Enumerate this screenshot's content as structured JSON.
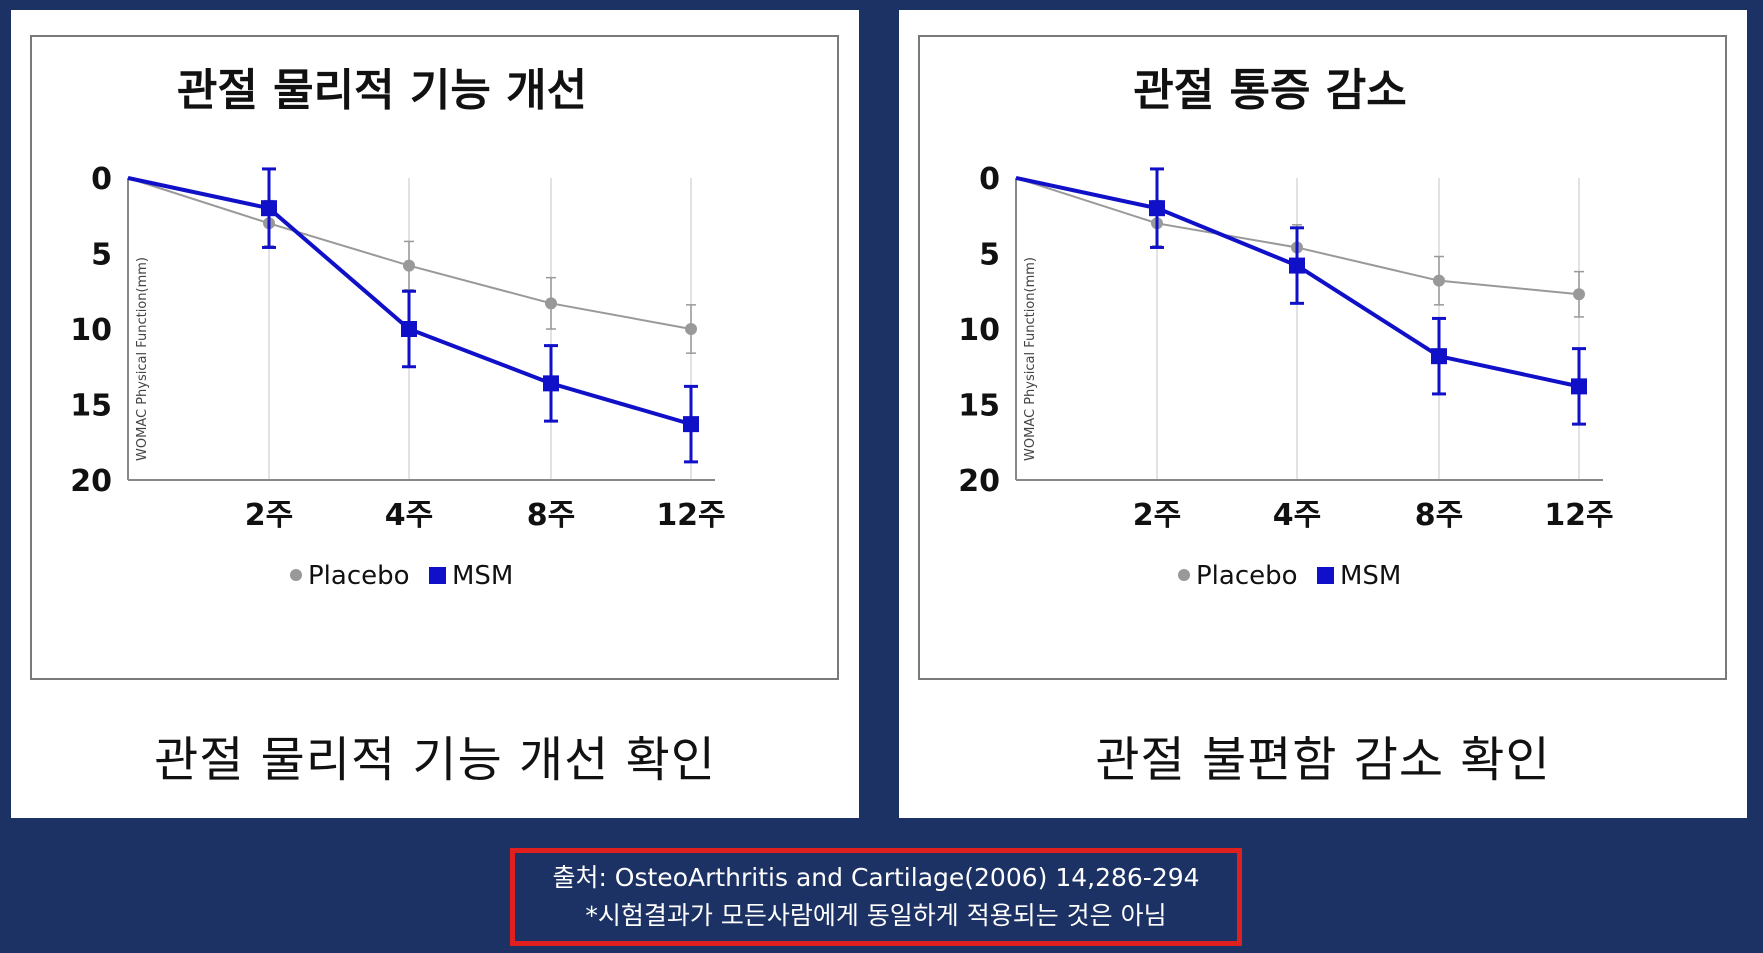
{
  "source": {
    "line1": "출처: OsteoArthritis and Cartilage(2006) 14,286-294",
    "line2": "*시험결과가 모든사람에게 동일하게 적용되는 것은 아님"
  },
  "colors": {
    "placebo": "#999999",
    "msm": "#1010c8",
    "background": "#1c3164",
    "source_border": "#e01f1f"
  },
  "chart_data": [
    {
      "type": "line",
      "title": "관절 물리적 기능 개선",
      "caption": "관절 물리적 기능 개선 확인",
      "ylabel": "WOMAC Physical Function(mm)",
      "ylim": [
        0,
        20
      ],
      "y_inverted": true,
      "yticks": [
        "0",
        "5",
        "10",
        "15",
        "20"
      ],
      "categories": [
        "",
        "2주",
        "4주",
        "8주",
        "12주"
      ],
      "series": [
        {
          "name": "Placebo",
          "marker": "circle",
          "values": [
            0,
            3,
            5.8,
            8.3,
            10
          ],
          "errors": [
            0,
            1.5,
            1.6,
            1.7,
            1.6
          ]
        },
        {
          "name": "MSM",
          "marker": "square",
          "values": [
            0,
            2,
            10,
            13.6,
            16.3
          ],
          "errors": [
            0,
            2.6,
            2.5,
            2.5,
            2.5
          ]
        }
      ]
    },
    {
      "type": "line",
      "title": "관절 통증 감소",
      "caption": "관절 불편함 감소 확인",
      "ylabel": "WOMAC Physical Function(mm)",
      "ylim": [
        0,
        20
      ],
      "y_inverted": true,
      "yticks": [
        "0",
        "5",
        "10",
        "15",
        "20"
      ],
      "categories": [
        "",
        "2주",
        "4주",
        "8주",
        "12주"
      ],
      "series": [
        {
          "name": "Placebo",
          "marker": "circle",
          "values": [
            0,
            3,
            4.6,
            6.8,
            7.7
          ],
          "errors": [
            0,
            1.5,
            1.5,
            1.6,
            1.5
          ]
        },
        {
          "name": "MSM",
          "marker": "square",
          "values": [
            0,
            2,
            5.8,
            11.8,
            13.8
          ],
          "errors": [
            0,
            2.6,
            2.5,
            2.5,
            2.5
          ]
        }
      ]
    }
  ]
}
